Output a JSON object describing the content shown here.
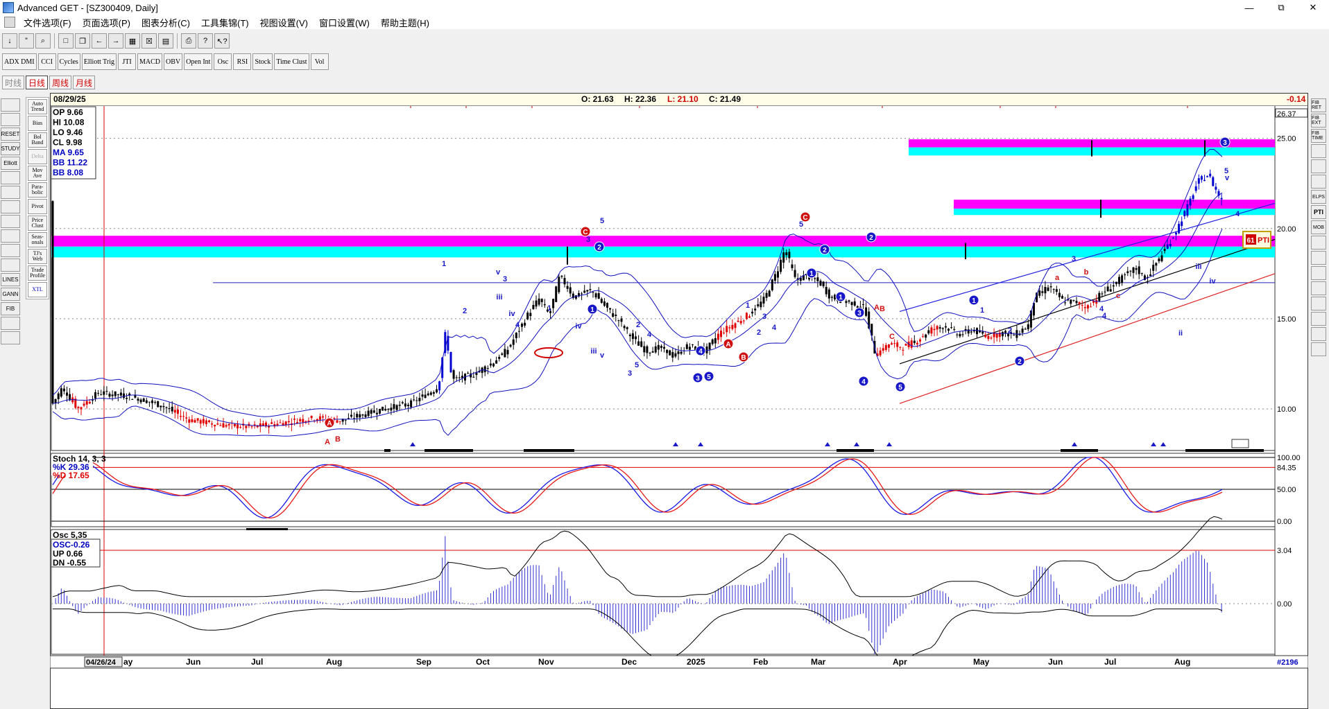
{
  "window": {
    "title": "Advanced GET - [SZ300409, Daily]",
    "minimize": "—",
    "maximize": "⧉",
    "close": "✕"
  },
  "menu": [
    "文件选项(F)",
    "页面选项(P)",
    "图表分析(C)",
    "工具集锦(T)",
    "视图设置(V)",
    "窗口设置(W)",
    "帮助主题(H)"
  ],
  "indicator_buttons": [
    "ADX DMI",
    "CCI",
    "Cycles",
    "Elliott Trig",
    "JTI",
    "MACD",
    "OBV",
    "Open Int",
    "Osc",
    "RSI",
    "Stock",
    "Time Clust",
    "Vol"
  ],
  "periods": [
    {
      "label": "时线",
      "active": false
    },
    {
      "label": "日线",
      "active": true
    },
    {
      "label": "周线",
      "active": false
    },
    {
      "label": "月线",
      "active": false
    }
  ],
  "study_buttons": [
    "Auto Trend",
    "Bias",
    "Bol Band",
    "Delta",
    "Mov Ave",
    "Para-bolic",
    "Pivot",
    "Price Clust",
    "Seas-onals",
    "TJ's Web",
    "Trade Profile",
    "XTL"
  ],
  "left_tools": [
    "open-icon",
    "binoculars-icon",
    "reset-icon",
    "study-icon",
    "elliott-icon",
    "arrow-up-icon",
    "arrow-down-icon",
    "arrow-left-icon",
    "arrow-right-icon",
    "compress-icon",
    "expand-icon",
    "zoom-icon",
    "lines-icon",
    "gann-icon",
    "fib-icon",
    "crosshair-icon",
    "print-icon"
  ],
  "left_tool_labels": [
    "",
    "",
    "RESET",
    "STUDY",
    "Elliott",
    "",
    "",
    "",
    "",
    "",
    "",
    "",
    "LINES",
    "GANN",
    "FIB",
    "",
    ""
  ],
  "right_tools": [
    "FIB RET",
    "FIB EXT",
    "FIB TIME",
    "",
    "",
    "",
    "ELPS",
    "PTI",
    "MOB",
    "",
    "",
    "",
    "",
    "",
    "",
    "",
    ""
  ],
  "header": {
    "date": "08/29/25",
    "open": "O: 21.63",
    "high": "H: 22.36",
    "low": "L: 21.10",
    "close": "C: 21.49",
    "change": "-0.14"
  },
  "info_box": {
    "op": "OP  9.66",
    "hi": "HI   10.08",
    "lo": "LO  9.46",
    "cl": "CL  9.98",
    "ma": "MA 9.65",
    "bb_upper": "BB 11.22",
    "bb_lower": "BB 8.08"
  },
  "price_axis": {
    "ticks": [
      "26.37",
      "25.00",
      "20.00",
      "15.00",
      "10.00"
    ]
  },
  "stoch": {
    "title": "Stoch 14, 3, 3",
    "k": "%K  29.36",
    "d": "%D  17.65",
    "ticks": [
      "100.00",
      "84.35",
      "50.00",
      "0.00"
    ]
  },
  "osc": {
    "title": "Osc 5,35",
    "osc": "OSC-0.26",
    "up": "UP   0.66",
    "dn": "DN   -0.55",
    "ticks": [
      "3.04",
      "0.00"
    ]
  },
  "time_axis": {
    "start": "04/26/24",
    "labels": [
      "ay",
      "Jun",
      "Jul",
      "Aug",
      "Sep",
      "Oct",
      "Nov",
      "Dec",
      "2025",
      "Feb",
      "Mar",
      "Apr",
      "May",
      "Jun",
      "Jul",
      "Aug"
    ],
    "bar_count": "#2196"
  },
  "pti_badge": {
    "number": "61",
    "label": "PTI"
  },
  "elliott_labels": {
    "circled_blue": [
      "1",
      "2",
      "1",
      "2",
      "4",
      "3",
      "5",
      "1",
      "2",
      "3",
      "4",
      "5",
      "1",
      "2",
      "3"
    ],
    "circled_red": [
      "A",
      "C",
      "A",
      "B",
      "C"
    ]
  },
  "colors": {
    "magenta_band": "#ff00ff",
    "cyan_band": "#00ffff",
    "bb_line": "#1010c0",
    "up_bar": "#000000",
    "down_bar": "#e00000",
    "osc_bar": "#3030d0",
    "header_bg": "#fffde8"
  }
}
